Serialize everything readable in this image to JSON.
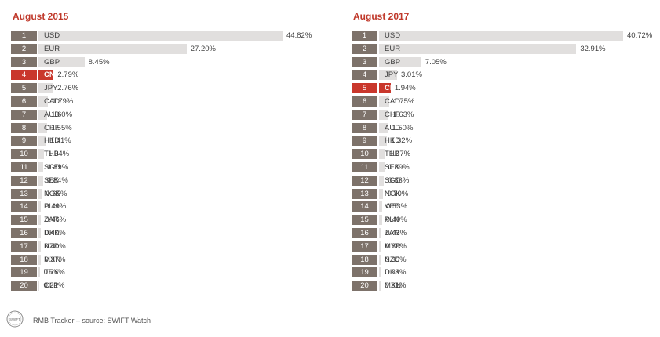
{
  "chart_data": [
    {
      "type": "bar",
      "title": "August 2015",
      "ranks": [
        "1",
        "2",
        "3",
        "4",
        "5",
        "6",
        "7",
        "8",
        "9",
        "10",
        "11",
        "12",
        "13",
        "14",
        "15",
        "16",
        "17",
        "18",
        "19",
        "20"
      ],
      "categories": [
        "USD",
        "EUR",
        "GBP",
        "CNY",
        "JPY",
        "CAD",
        "AUD",
        "CHF",
        "HKD",
        "THB",
        "SGD",
        "SEK",
        "NOK",
        "PLN",
        "ZAR",
        "DKK",
        "NZD",
        "MXN",
        "TRY",
        "CLP"
      ],
      "values": [
        44.82,
        27.2,
        8.45,
        2.79,
        2.76,
        1.79,
        1.6,
        1.55,
        1.41,
        1.04,
        0.89,
        0.84,
        0.65,
        0.49,
        0.46,
        0.4,
        0.4,
        0.37,
        0.26,
        0.21
      ],
      "labels": [
        "44.82%",
        "27.20%",
        "8.45%",
        "2.79%",
        "2.76%",
        "1.79%",
        "1.60%",
        "1.55%",
        "1.41%",
        "1.04%",
        "0.89%",
        "0.84%",
        "0.65%",
        "0.49%",
        "0.46%",
        "0.40%",
        "0.40%",
        "0.37%",
        "0.26%",
        "0.21%"
      ],
      "highlight": "CNY"
    },
    {
      "type": "bar",
      "title": "August 2017",
      "ranks": [
        "1",
        "2",
        "3",
        "4",
        "5",
        "6",
        "7",
        "8",
        "9",
        "10",
        "11",
        "12",
        "13",
        "14",
        "15",
        "16",
        "17",
        "18",
        "19",
        "20"
      ],
      "categories": [
        "USD",
        "EUR",
        "GBP",
        "JPY",
        "CNY",
        "CAD",
        "CHF",
        "AUD",
        "HKD",
        "THB",
        "SEK",
        "SGD",
        "NOK",
        "VEF",
        "PLN",
        "ZAR",
        "MYR",
        "NZD",
        "DKK",
        "MXN"
      ],
      "values": [
        40.72,
        32.91,
        7.05,
        3.01,
        1.94,
        1.75,
        1.63,
        1.5,
        1.32,
        1.07,
        0.89,
        0.83,
        0.7,
        0.53,
        0.49,
        0.43,
        0.39,
        0.35,
        0.33,
        0.31
      ],
      "labels": [
        "40.72%",
        "32.91%",
        "7.05%",
        "3.01%",
        "1.94%",
        "1.75%",
        "1.63%",
        "1.50%",
        "1.32%",
        "1.07%",
        "0.89%",
        "0.83%",
        "0.70%",
        "0.53%",
        "0.49%",
        "0.43%",
        "0.39%",
        "0.35%",
        "0.33%",
        "0.31%"
      ],
      "highlight": "CNY"
    }
  ],
  "footer": {
    "logo_text": "SWIFT",
    "source": "RMB Tracker – source: SWIFT Watch"
  },
  "colors": {
    "highlight": "#c9372c",
    "bar": "#e1dfde",
    "rank_box": "#7d726a",
    "title": "#c0392b"
  }
}
